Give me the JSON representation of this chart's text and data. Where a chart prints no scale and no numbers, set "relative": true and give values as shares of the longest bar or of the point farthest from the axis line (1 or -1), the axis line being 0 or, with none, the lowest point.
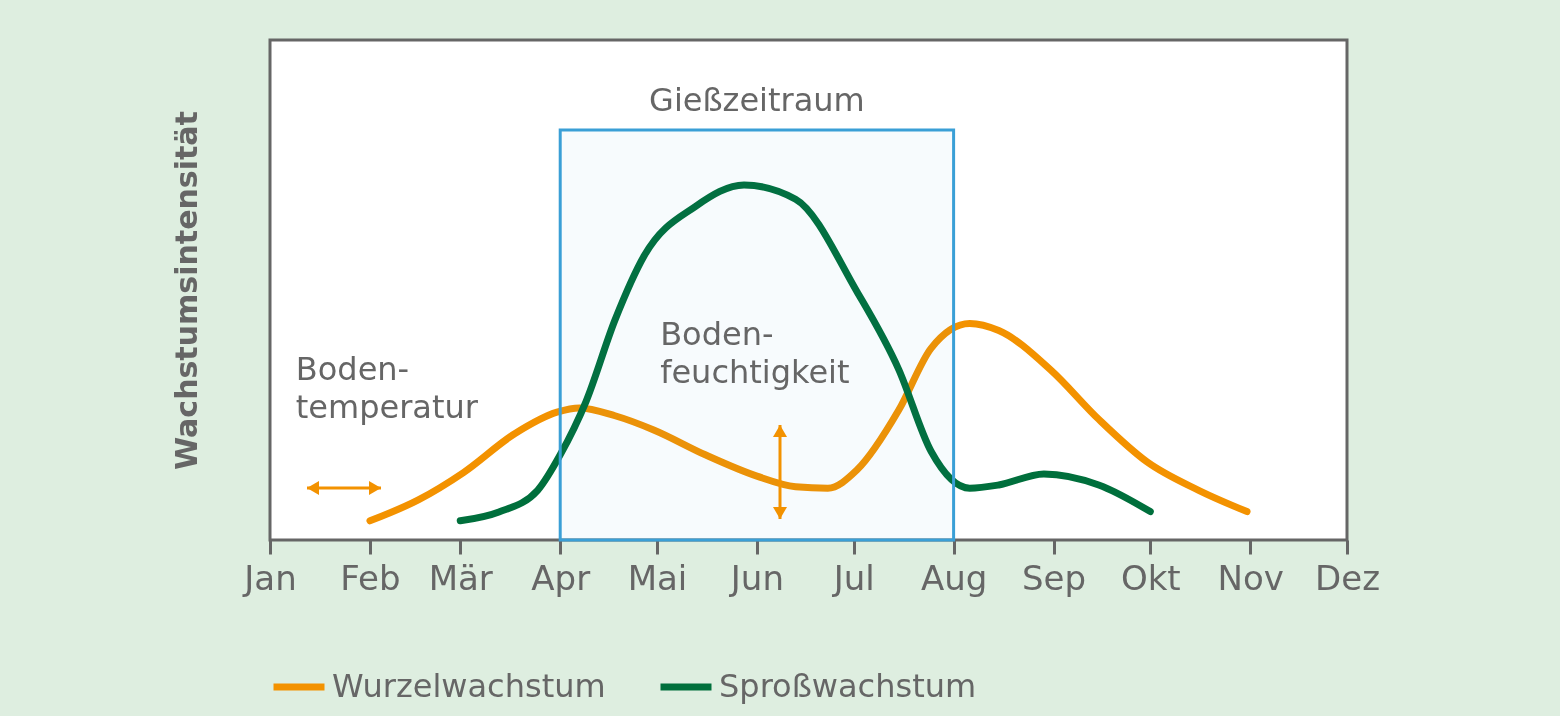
{
  "chart_data": {
    "type": "line",
    "ylabel": "Wachstumsintensität",
    "relative": true,
    "legend": "bottom",
    "line_style": "solid",
    "xlim": [
      "--01-01",
      "--12-01"
    ],
    "xticks": [
      {
        "value": "--01-01",
        "label": "Jan"
      },
      {
        "value": "--02-01",
        "label": "Feb"
      },
      {
        "value": "--03-01",
        "label": "Mär"
      },
      {
        "value": "--04-01",
        "label": "Apr"
      },
      {
        "value": "--05-01",
        "label": "Mai"
      },
      {
        "value": "--06-01",
        "label": "Jun"
      },
      {
        "value": "--07-01",
        "label": "Jul"
      },
      {
        "value": "--08-01",
        "label": "Aug"
      },
      {
        "value": "--09-01",
        "label": "Sep"
      },
      {
        "value": "--10-01",
        "label": "Okt"
      },
      {
        "value": "--11-01",
        "label": "Nov"
      },
      {
        "value": "--12-01",
        "label": "Dez"
      }
    ],
    "series": [
      {
        "name": "Wurzelwachstum",
        "color": "#f39200",
        "x": [
          "--02-01",
          "--02-16",
          "--03-02",
          "--03-18",
          "--03-31",
          "--04-07",
          "--04-18",
          "--04-30",
          "--05-16",
          "--06-01",
          "--06-13",
          "--06-23",
          "--07-02",
          "--07-15",
          "--07-25",
          "--08-06",
          "--08-15",
          "--08-31",
          "--09-15",
          "--09-30",
          "--10-16",
          "--10-31"
        ],
        "values": [
          0.054,
          0.113,
          0.19,
          0.3,
          0.36,
          0.372,
          0.35,
          0.31,
          0.24,
          0.18,
          0.15,
          0.146,
          0.197,
          0.366,
          0.54,
          0.61,
          0.59,
          0.48,
          0.34,
          0.22,
          0.14,
          0.08
        ]
      },
      {
        "name": "Sproßwachstum",
        "color": "#006f3c",
        "x": [
          "--03-01",
          "--03-13",
          "--03-25",
          "--04-01",
          "--04-09",
          "--04-18",
          "--04-27",
          "--05-13",
          "--05-28",
          "--06-13",
          "--07-02",
          "--07-15",
          "--07-25",
          "--08-06",
          "--08-15",
          "--08-29",
          "--09-15",
          "--10-01"
        ],
        "values": [
          0.054,
          0.079,
          0.14,
          0.24,
          0.39,
          0.62,
          0.8,
          0.94,
          1,
          0.96,
          0.7,
          0.48,
          0.25,
          0.146,
          0.155,
          0.186,
          0.155,
          0.08
        ]
      }
    ],
    "bands": [
      {
        "axis": "x",
        "from": "--04-01",
        "to": "--08-01",
        "label": "Gießzeitraum",
        "color": "#3a9fd6"
      }
    ],
    "annotations": [
      "Boden-\ntemperatur",
      "Boden-\nfeuchtigkeit"
    ]
  }
}
